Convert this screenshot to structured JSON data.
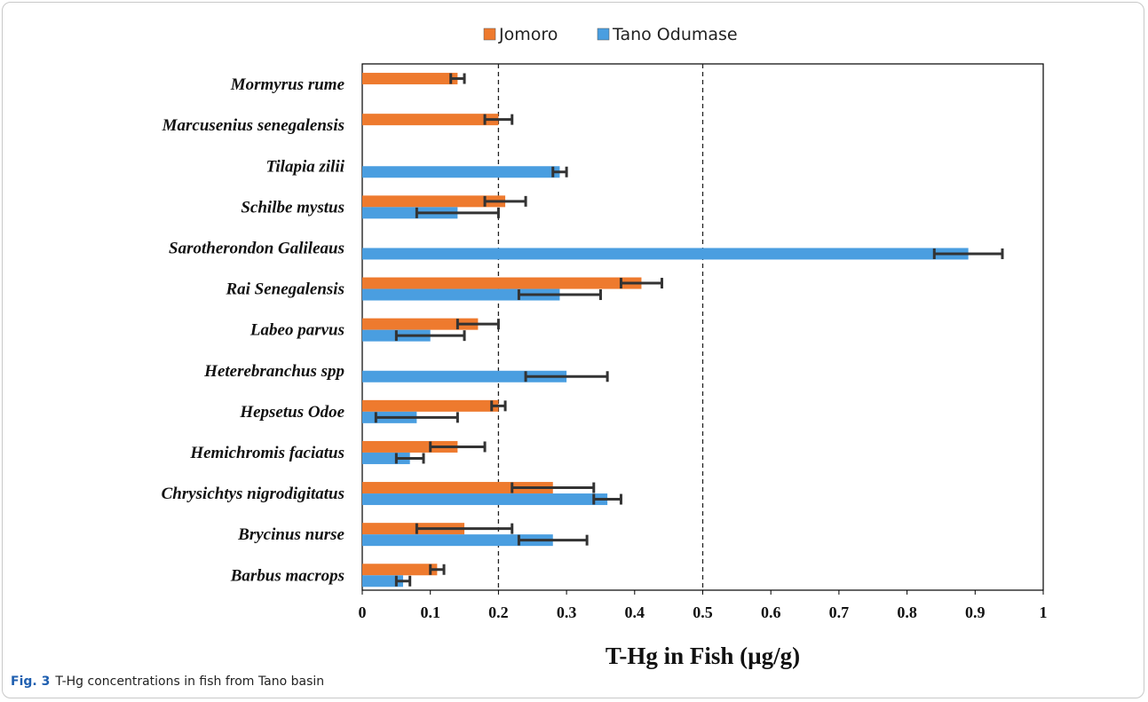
{
  "caption": {
    "label": "Fig. 3",
    "text": "T-Hg concentrations in fish from Tano basin"
  },
  "chart_data": {
    "type": "bar",
    "orientation": "horizontal",
    "xlabel": "T-Hg in Fish (µg/g)",
    "ylabel": "",
    "xlim": [
      0,
      1
    ],
    "xticks": [
      "0",
      "0.1",
      "0.2",
      "0.3",
      "0.4",
      "0.5",
      "0.6",
      "0.7",
      "0.8",
      "0.9",
      "1"
    ],
    "reference_lines": [
      0.2,
      0.5
    ],
    "legend_position": "top-center",
    "categories": [
      "Mormyrus rume",
      "Marcusenius senegalensis",
      "Tilapia zilii",
      "Schilbe mystus",
      "Sarotherondon Galileaus",
      "Rai Senegalensis",
      "Labeo parvus",
      "Heterebranchus spp",
      "Hepsetus Odoe",
      "Hemichromis faciatus",
      "Chrysichtys nigrodigitatus",
      "Brycinus nurse",
      "Barbus macrops"
    ],
    "series": [
      {
        "name": "Jomoro",
        "color": "#ee7a2e",
        "values": [
          0.14,
          0.2,
          null,
          0.21,
          null,
          0.41,
          0.17,
          null,
          0.2,
          0.14,
          0.28,
          0.15,
          0.11
        ],
        "errors": [
          0.01,
          0.02,
          null,
          0.03,
          null,
          0.03,
          0.03,
          null,
          0.01,
          0.04,
          0.06,
          0.07,
          0.01
        ]
      },
      {
        "name": "Tano Odumase",
        "color": "#4a9ee0",
        "values": [
          null,
          null,
          0.29,
          0.14,
          0.89,
          0.29,
          0.1,
          0.3,
          0.08,
          0.07,
          0.36,
          0.28,
          0.06
        ],
        "errors": [
          null,
          null,
          0.01,
          0.06,
          0.05,
          0.06,
          0.05,
          0.06,
          0.06,
          0.02,
          0.02,
          0.05,
          0.01
        ]
      }
    ]
  }
}
